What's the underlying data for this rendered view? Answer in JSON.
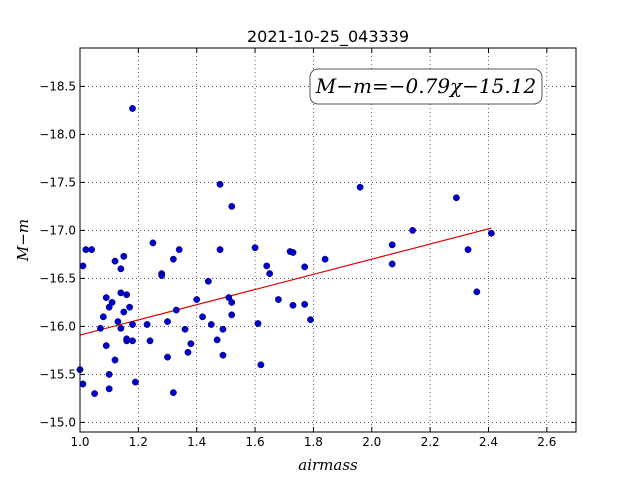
{
  "chart_data": {
    "type": "scatter",
    "title": "2021-10-25_043339",
    "xlabel": "airmass",
    "ylabel": "M−m",
    "xlim": [
      1.0,
      2.7
    ],
    "ylim": [
      -18.9,
      -14.9
    ],
    "y_inverted": true,
    "grid": true,
    "grid_style": "dotted",
    "xticks": [
      1.0,
      1.2,
      1.4,
      1.6,
      1.8,
      2.0,
      2.2,
      2.4,
      2.6
    ],
    "xtick_labels": [
      "1.0",
      "1.2",
      "1.4",
      "1.6",
      "1.8",
      "2.0",
      "2.2",
      "2.4",
      "2.6"
    ],
    "yticks": [
      -15.0,
      -15.5,
      -16.0,
      -16.5,
      -17.0,
      -17.5,
      -18.0,
      -18.5
    ],
    "ytick_labels": [
      "−15.0",
      "−15.5",
      "−16.0",
      "−16.5",
      "−17.0",
      "−17.5",
      "−18.0",
      "−18.5"
    ],
    "annotation": "M−m=−0.79χ−15.12",
    "marker_color": "#0000cc",
    "fit_color": "#dd0000",
    "fit": {
      "slope": -0.79,
      "intercept": -15.12,
      "x_range": [
        1.0,
        2.41
      ]
    },
    "series": [
      {
        "points": [
          [
            1.0,
            -15.55
          ],
          [
            1.01,
            -15.4
          ],
          [
            1.01,
            -16.63
          ],
          [
            1.02,
            -16.8
          ],
          [
            1.04,
            -16.8
          ],
          [
            1.05,
            -15.3
          ],
          [
            1.07,
            -15.98
          ],
          [
            1.08,
            -16.1
          ],
          [
            1.09,
            -15.8
          ],
          [
            1.09,
            -16.3
          ],
          [
            1.1,
            -15.35
          ],
          [
            1.1,
            -15.5
          ],
          [
            1.1,
            -16.2
          ],
          [
            1.11,
            -16.25
          ],
          [
            1.12,
            -16.68
          ],
          [
            1.12,
            -15.65
          ],
          [
            1.13,
            -16.05
          ],
          [
            1.14,
            -15.98
          ],
          [
            1.14,
            -16.6
          ],
          [
            1.14,
            -16.35
          ],
          [
            1.15,
            -16.15
          ],
          [
            1.15,
            -16.73
          ],
          [
            1.16,
            -15.85
          ],
          [
            1.16,
            -15.87
          ],
          [
            1.16,
            -16.33
          ],
          [
            1.17,
            -16.2
          ],
          [
            1.18,
            -16.02
          ],
          [
            1.18,
            -15.85
          ],
          [
            1.19,
            -15.42
          ],
          [
            1.18,
            -18.27
          ],
          [
            1.23,
            -16.02
          ],
          [
            1.24,
            -15.85
          ],
          [
            1.25,
            -16.87
          ],
          [
            1.28,
            -16.55
          ],
          [
            1.28,
            -16.53
          ],
          [
            1.3,
            -16.05
          ],
          [
            1.3,
            -15.68
          ],
          [
            1.32,
            -15.31
          ],
          [
            1.32,
            -16.7
          ],
          [
            1.33,
            -16.17
          ],
          [
            1.34,
            -16.8
          ],
          [
            1.36,
            -15.97
          ],
          [
            1.37,
            -15.73
          ],
          [
            1.38,
            -15.82
          ],
          [
            1.4,
            -16.28
          ],
          [
            1.42,
            -16.1
          ],
          [
            1.44,
            -16.47
          ],
          [
            1.45,
            -16.02
          ],
          [
            1.47,
            -15.86
          ],
          [
            1.48,
            -16.8
          ],
          [
            1.48,
            -17.48
          ],
          [
            1.49,
            -15.97
          ],
          [
            1.49,
            -15.7
          ],
          [
            1.51,
            -16.3
          ],
          [
            1.52,
            -16.25
          ],
          [
            1.52,
            -16.12
          ],
          [
            1.52,
            -17.25
          ],
          [
            1.6,
            -16.82
          ],
          [
            1.61,
            -16.03
          ],
          [
            1.62,
            -15.6
          ],
          [
            1.64,
            -16.63
          ],
          [
            1.65,
            -16.55
          ],
          [
            1.68,
            -16.28
          ],
          [
            1.72,
            -16.78
          ],
          [
            1.73,
            -16.22
          ],
          [
            1.73,
            -16.77
          ],
          [
            1.77,
            -16.23
          ],
          [
            1.77,
            -16.62
          ],
          [
            1.79,
            -16.07
          ],
          [
            1.84,
            -16.7
          ],
          [
            1.96,
            -17.45
          ],
          [
            2.07,
            -16.65
          ],
          [
            2.07,
            -16.85
          ],
          [
            2.14,
            -17.0
          ],
          [
            2.29,
            -17.34
          ],
          [
            2.33,
            -16.8
          ],
          [
            2.36,
            -16.36
          ],
          [
            2.41,
            -16.97
          ]
        ]
      }
    ]
  }
}
